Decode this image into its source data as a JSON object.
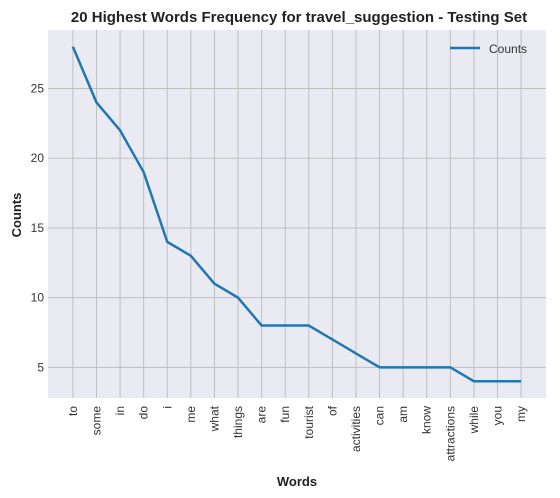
{
  "chart_data": {
    "type": "line",
    "title": "20 Highest Words Frequency for travel_suggestion - Testing Set",
    "xlabel": "Words",
    "ylabel": "Counts",
    "categories": [
      "to",
      "some",
      "in",
      "do",
      "i",
      "me",
      "what",
      "things",
      "are",
      "fun",
      "tourist",
      "of",
      "activities",
      "can",
      "am",
      "know",
      "attractions",
      "while",
      "you",
      "my"
    ],
    "series": [
      {
        "name": "Counts",
        "values": [
          28,
          24,
          22,
          19,
          14,
          13,
          11,
          10,
          8,
          8,
          8,
          7,
          6,
          5,
          5,
          5,
          5,
          4,
          4,
          4
        ]
      }
    ],
    "yticks": [
      5,
      10,
      15,
      20,
      25
    ],
    "ylim": [
      2.8,
      29.2
    ],
    "grid": true,
    "legend": "top-right",
    "colors": {
      "line": "#1f77b4",
      "background": "#eaeaf2",
      "grid": "#bfbfbf"
    }
  }
}
